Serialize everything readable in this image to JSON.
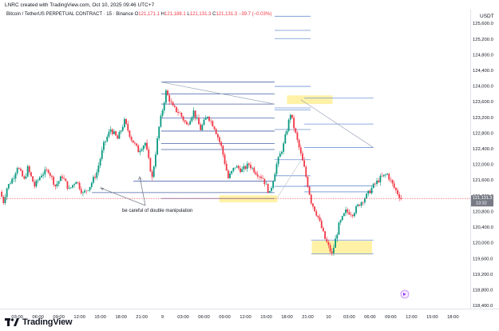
{
  "header": {
    "caption": "LNRC created with TradingView.com, Oct 10, 2025 09:46 UTC+7",
    "symbol": "Bitcoin / TetherUS PERPETUAL CONTRACT · 15 · Binance",
    "ohlc": {
      "o_label": "O",
      "o": "121,171.1",
      "h_label": "H",
      "h": "121,188.1",
      "l_label": "L",
      "l": "121,131.3",
      "c_label": "C",
      "c": "121,131.3",
      "change": "−39.7 (−0.03%)"
    }
  },
  "footer": {
    "brand": "TradingView"
  },
  "chart_data": {
    "type": "candlestick",
    "currency": "USDT",
    "y_ticks": [
      "125,600.0",
      "125,200.0",
      "124,800.0",
      "124,400.0",
      "124,000.0",
      "123,600.0",
      "123,200.0",
      "122,800.0",
      "122,400.0",
      "122,000.0",
      "121,600.0",
      "121,200.0",
      "120,800.0",
      "120,400.0",
      "120,000.0",
      "119,600.0",
      "119,200.0",
      "118,800.0",
      "118,400.0"
    ],
    "y_tick_values": [
      125600,
      125200,
      124800,
      124400,
      124000,
      123600,
      123200,
      122800,
      122400,
      122000,
      121600,
      121200,
      120800,
      120400,
      120000,
      119600,
      119200,
      118800,
      118400
    ],
    "ylim": [
      118320,
      125950
    ],
    "x_ticks": [
      "03:00",
      "06:00",
      "09:00",
      "12:00",
      "15:00",
      "18:00",
      "21:00",
      "9",
      "03:00",
      "06:00",
      "09:00",
      "12:00",
      "15:00",
      "18:00",
      "21:00",
      "10",
      "03:00",
      "06:00",
      "09:00",
      "12:00",
      "15:00",
      "18:00"
    ],
    "x_tick_hours": [
      3,
      6,
      9,
      12,
      15,
      18,
      21,
      24,
      27,
      30,
      33,
      36,
      39,
      42,
      45,
      48,
      51,
      54,
      57,
      60,
      63,
      66
    ],
    "xlim": [
      0.5,
      68.5
    ],
    "last_price": "121,131.3",
    "last_price_countdown": "13:32",
    "annotation": "be careful of double manipulation",
    "ohlc_anchors": [
      {
        "h": 0.5,
        "p": 121300
      },
      {
        "h": 1,
        "p": 121050
      },
      {
        "h": 1.5,
        "p": 121400
      },
      {
        "h": 2.5,
        "p": 121700
      },
      {
        "h": 3,
        "p": 121950
      },
      {
        "h": 4,
        "p": 121600
      },
      {
        "h": 4.5,
        "p": 121900
      },
      {
        "h": 5.5,
        "p": 121450
      },
      {
        "h": 6.5,
        "p": 121750
      },
      {
        "h": 7.5,
        "p": 121850
      },
      {
        "h": 8.5,
        "p": 121450
      },
      {
        "h": 9.5,
        "p": 121700
      },
      {
        "h": 10.5,
        "p": 121350
      },
      {
        "h": 11.5,
        "p": 121600
      },
      {
        "h": 12.5,
        "p": 121250
      },
      {
        "h": 13.5,
        "p": 121450
      },
      {
        "h": 14.5,
        "p": 121800
      },
      {
        "h": 15.5,
        "p": 122500
      },
      {
        "h": 16.5,
        "p": 122900
      },
      {
        "h": 17.5,
        "p": 122650
      },
      {
        "h": 18.5,
        "p": 123100
      },
      {
        "h": 19.5,
        "p": 122650
      },
      {
        "h": 20.5,
        "p": 122350
      },
      {
        "h": 21.5,
        "p": 122550
      },
      {
        "h": 22.5,
        "p": 121650
      },
      {
        "h": 23.5,
        "p": 122950
      },
      {
        "h": 24.5,
        "p": 123850
      },
      {
        "h": 25.5,
        "p": 123450
      },
      {
        "h": 26.5,
        "p": 123300
      },
      {
        "h": 27.5,
        "p": 123000
      },
      {
        "h": 28.5,
        "p": 123350
      },
      {
        "h": 29.5,
        "p": 122900
      },
      {
        "h": 30.5,
        "p": 123250
      },
      {
        "h": 31.5,
        "p": 122950
      },
      {
        "h": 32.5,
        "p": 122450
      },
      {
        "h": 33.5,
        "p": 121650
      },
      {
        "h": 34.5,
        "p": 121950
      },
      {
        "h": 35.5,
        "p": 121850
      },
      {
        "h": 36.5,
        "p": 122000
      },
      {
        "h": 37.5,
        "p": 121800
      },
      {
        "h": 38.5,
        "p": 121650
      },
      {
        "h": 39.5,
        "p": 121250
      },
      {
        "h": 40.5,
        "p": 122000
      },
      {
        "h": 41.5,
        "p": 122500
      },
      {
        "h": 42.5,
        "p": 123300
      },
      {
        "h": 43.5,
        "p": 122600
      },
      {
        "h": 44.5,
        "p": 121900
      },
      {
        "h": 45.5,
        "p": 121050
      },
      {
        "h": 46.5,
        "p": 120650
      },
      {
        "h": 47.5,
        "p": 120100
      },
      {
        "h": 48.5,
        "p": 119700
      },
      {
        "h": 49.5,
        "p": 120450
      },
      {
        "h": 50.5,
        "p": 120800
      },
      {
        "h": 51.5,
        "p": 120750
      },
      {
        "h": 52.5,
        "p": 121000
      },
      {
        "h": 53.5,
        "p": 121200
      },
      {
        "h": 54.5,
        "p": 121450
      },
      {
        "h": 55.5,
        "p": 121650
      },
      {
        "h": 56.5,
        "p": 121750
      },
      {
        "h": 57.5,
        "p": 121400
      },
      {
        "h": 58.5,
        "p": 121131
      }
    ],
    "horizontal_levels": [
      {
        "h1": 23.8,
        "h2": 40.2,
        "p": 124100,
        "color": "#4a62a8"
      },
      {
        "h1": 23.8,
        "h2": 40.2,
        "p": 123800,
        "color": "#4a62a8"
      },
      {
        "h1": 23.8,
        "h2": 40.2,
        "p": 123540,
        "color": "#4a62a8"
      },
      {
        "h1": 23.8,
        "h2": 40.2,
        "p": 123180,
        "color": "#4a62a8"
      },
      {
        "h1": 23.8,
        "h2": 40.2,
        "p": 122850,
        "color": "#4a62a8"
      },
      {
        "h1": 23.8,
        "h2": 40.2,
        "p": 122530,
        "color": "#4a62a8"
      },
      {
        "h1": 23.8,
        "h2": 40.2,
        "p": 122380,
        "color": "#4a62a8"
      },
      {
        "h1": 19.8,
        "h2": 40.2,
        "p": 121570,
        "color": "#4a62a8"
      },
      {
        "h1": 13.8,
        "h2": 40.2,
        "p": 121280,
        "color": "#4a62a8"
      },
      {
        "h1": 23.8,
        "h2": 40.2,
        "p": 121130,
        "color": "#4a62a8"
      },
      {
        "h1": 40.2,
        "h2": 45.4,
        "p": 125780,
        "color": "#6d92d6"
      },
      {
        "h1": 40.2,
        "h2": 45.4,
        "p": 125420,
        "color": "#6d92d6"
      },
      {
        "h1": 40.2,
        "h2": 45.4,
        "p": 125210,
        "color": "#6d92d6"
      },
      {
        "h1": 40.2,
        "h2": 45.4,
        "p": 123990,
        "color": "#6d92d6"
      },
      {
        "h1": 40.2,
        "h2": 45.4,
        "p": 123440,
        "color": "#6d92d6"
      },
      {
        "h1": 40.2,
        "h2": 45.4,
        "p": 123390,
        "color": "#6d92d6"
      },
      {
        "h1": 40.2,
        "h2": 45.4,
        "p": 122890,
        "color": "#6d92d6"
      },
      {
        "h1": 40.2,
        "h2": 45.4,
        "p": 122120,
        "color": "#6d92d6"
      },
      {
        "h1": 40.2,
        "h2": 45.4,
        "p": 121710,
        "color": "#6d92d6"
      },
      {
        "h1": 40.2,
        "h2": 45.4,
        "p": 121440,
        "color": "#6d92d6"
      },
      {
        "h1": 44.5,
        "h2": 54.5,
        "p": 123690,
        "color": "#6d92d6"
      },
      {
        "h1": 44.5,
        "h2": 54.5,
        "p": 123030,
        "color": "#6d92d6"
      },
      {
        "h1": 44.5,
        "h2": 54.5,
        "p": 122430,
        "color": "#6d92d6"
      },
      {
        "h1": 44.5,
        "h2": 54.5,
        "p": 121450,
        "color": "#6d92d6"
      },
      {
        "h1": 44.5,
        "h2": 54.5,
        "p": 121300,
        "color": "#6d92d6"
      },
      {
        "h1": 45.5,
        "h2": 54.5,
        "p": 120070,
        "color": "#6d92d6"
      },
      {
        "h1": 45.5,
        "h2": 54.5,
        "p": 119720,
        "color": "#6d92d6"
      }
    ],
    "zones": [
      {
        "h1": 42,
        "h2": 48.6,
        "p1": 123540,
        "p2": 123760,
        "color": "#fff2a6"
      },
      {
        "h1": 32.2,
        "h2": 40.6,
        "p1": 121030,
        "p2": 121210,
        "color": "#fff2a6"
      },
      {
        "h1": 45.6,
        "h2": 54.3,
        "p1": 119700,
        "p2": 120050,
        "color": "#fff2a6"
      }
    ],
    "trend_lines": [
      {
        "h1": 23.8,
        "p1": 124100,
        "h2": 40.2,
        "p2": 123540,
        "color": "#9aa5b8"
      },
      {
        "h1": 44,
        "p1": 123650,
        "h2": 54.5,
        "p2": 122430,
        "color": "#9aa5b8"
      },
      {
        "h1": 40.6,
        "p1": 121150,
        "h2": 44,
        "p2": 122100,
        "color": "#c4c9d3"
      }
    ]
  }
}
